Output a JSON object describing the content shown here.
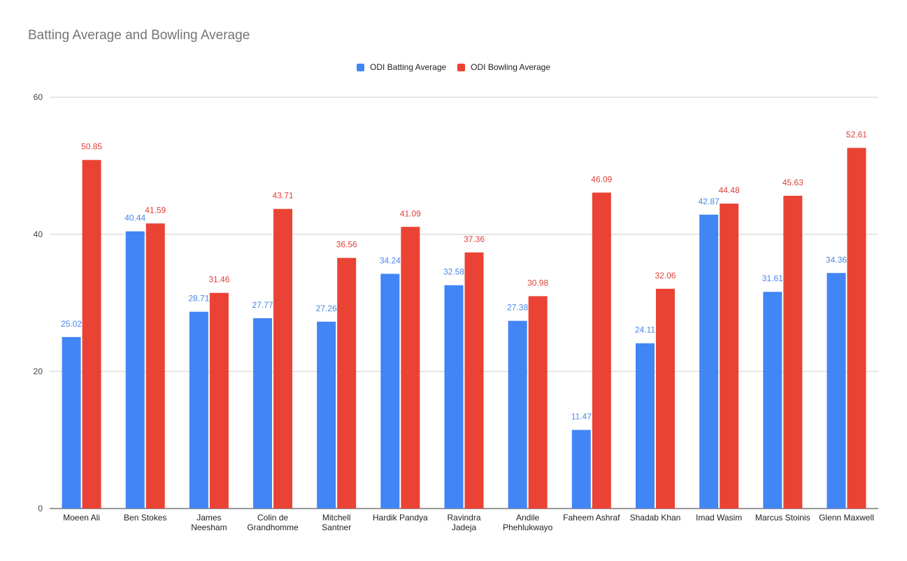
{
  "chart_data": {
    "type": "bar",
    "title": "Batting Average and Bowling Average",
    "xlabel": "",
    "ylabel": "",
    "ylim": [
      0,
      60
    ],
    "yticks": [
      0,
      20,
      40,
      60
    ],
    "grid": true,
    "legend_position": "top-center",
    "categories": [
      [
        "Moeen Ali"
      ],
      [
        "Ben Stokes"
      ],
      [
        "James",
        "Neesham"
      ],
      [
        "Colin de",
        "Grandhomme"
      ],
      [
        "Mitchell",
        "Santner"
      ],
      [
        "Hardik Pandya"
      ],
      [
        "Ravindra",
        "Jadeja"
      ],
      [
        "Andile",
        "Phehlukwayo"
      ],
      [
        "Faheem Ashraf"
      ],
      [
        "Shadab Khan"
      ],
      [
        "Imad Wasim"
      ],
      [
        "Marcus Stoinis"
      ],
      [
        "Glenn Maxwell"
      ]
    ],
    "series": [
      {
        "name": "ODI Batting Average",
        "color": "#4285f4",
        "label_color": "#4a86e8",
        "values": [
          25.02,
          40.44,
          28.71,
          27.77,
          27.26,
          34.24,
          32.58,
          27.38,
          11.47,
          24.11,
          42.87,
          31.61,
          34.36
        ]
      },
      {
        "name": "ODI Bowling Average",
        "color": "#ea4335",
        "label_color": "#e0413a",
        "values": [
          50.85,
          41.59,
          31.46,
          43.71,
          36.56,
          41.09,
          37.36,
          30.98,
          46.09,
          32.06,
          44.48,
          45.63,
          52.61
        ]
      }
    ]
  }
}
